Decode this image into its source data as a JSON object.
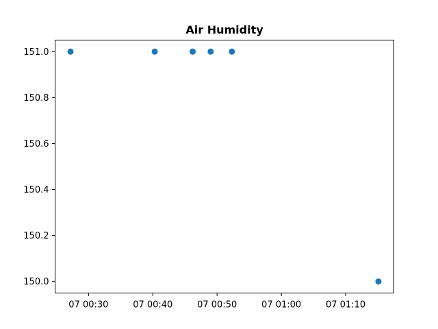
{
  "chart_data": {
    "type": "scatter",
    "title": "Air Humidity",
    "xlabel": "",
    "ylabel": "",
    "x_tick_labels": [
      "07 00:30",
      "07 00:40",
      "07 00:50",
      "07 01:00",
      "07 01:10"
    ],
    "x_ticks": [
      "00:30",
      "00:40",
      "00:50",
      "01:00",
      "01:10"
    ],
    "y_tick_labels": [
      "150.0",
      "150.2",
      "150.4",
      "150.6",
      "150.8",
      "151.0"
    ],
    "y_ticks": [
      150.0,
      150.2,
      150.4,
      150.6,
      150.8,
      151.0
    ],
    "xlim": [
      "00:24.8",
      "01:17.5"
    ],
    "ylim": [
      149.95,
      151.05
    ],
    "grid": false,
    "color": "#1f77b4",
    "points": [
      {
        "x": "00:27.2",
        "y": 151.0
      },
      {
        "x": "00:40.3",
        "y": 151.0
      },
      {
        "x": "00:46.2",
        "y": 151.0
      },
      {
        "x": "00:49.0",
        "y": 151.0
      },
      {
        "x": "00:52.3",
        "y": 151.0
      },
      {
        "x": "01:15.1",
        "y": 150.0
      }
    ]
  }
}
